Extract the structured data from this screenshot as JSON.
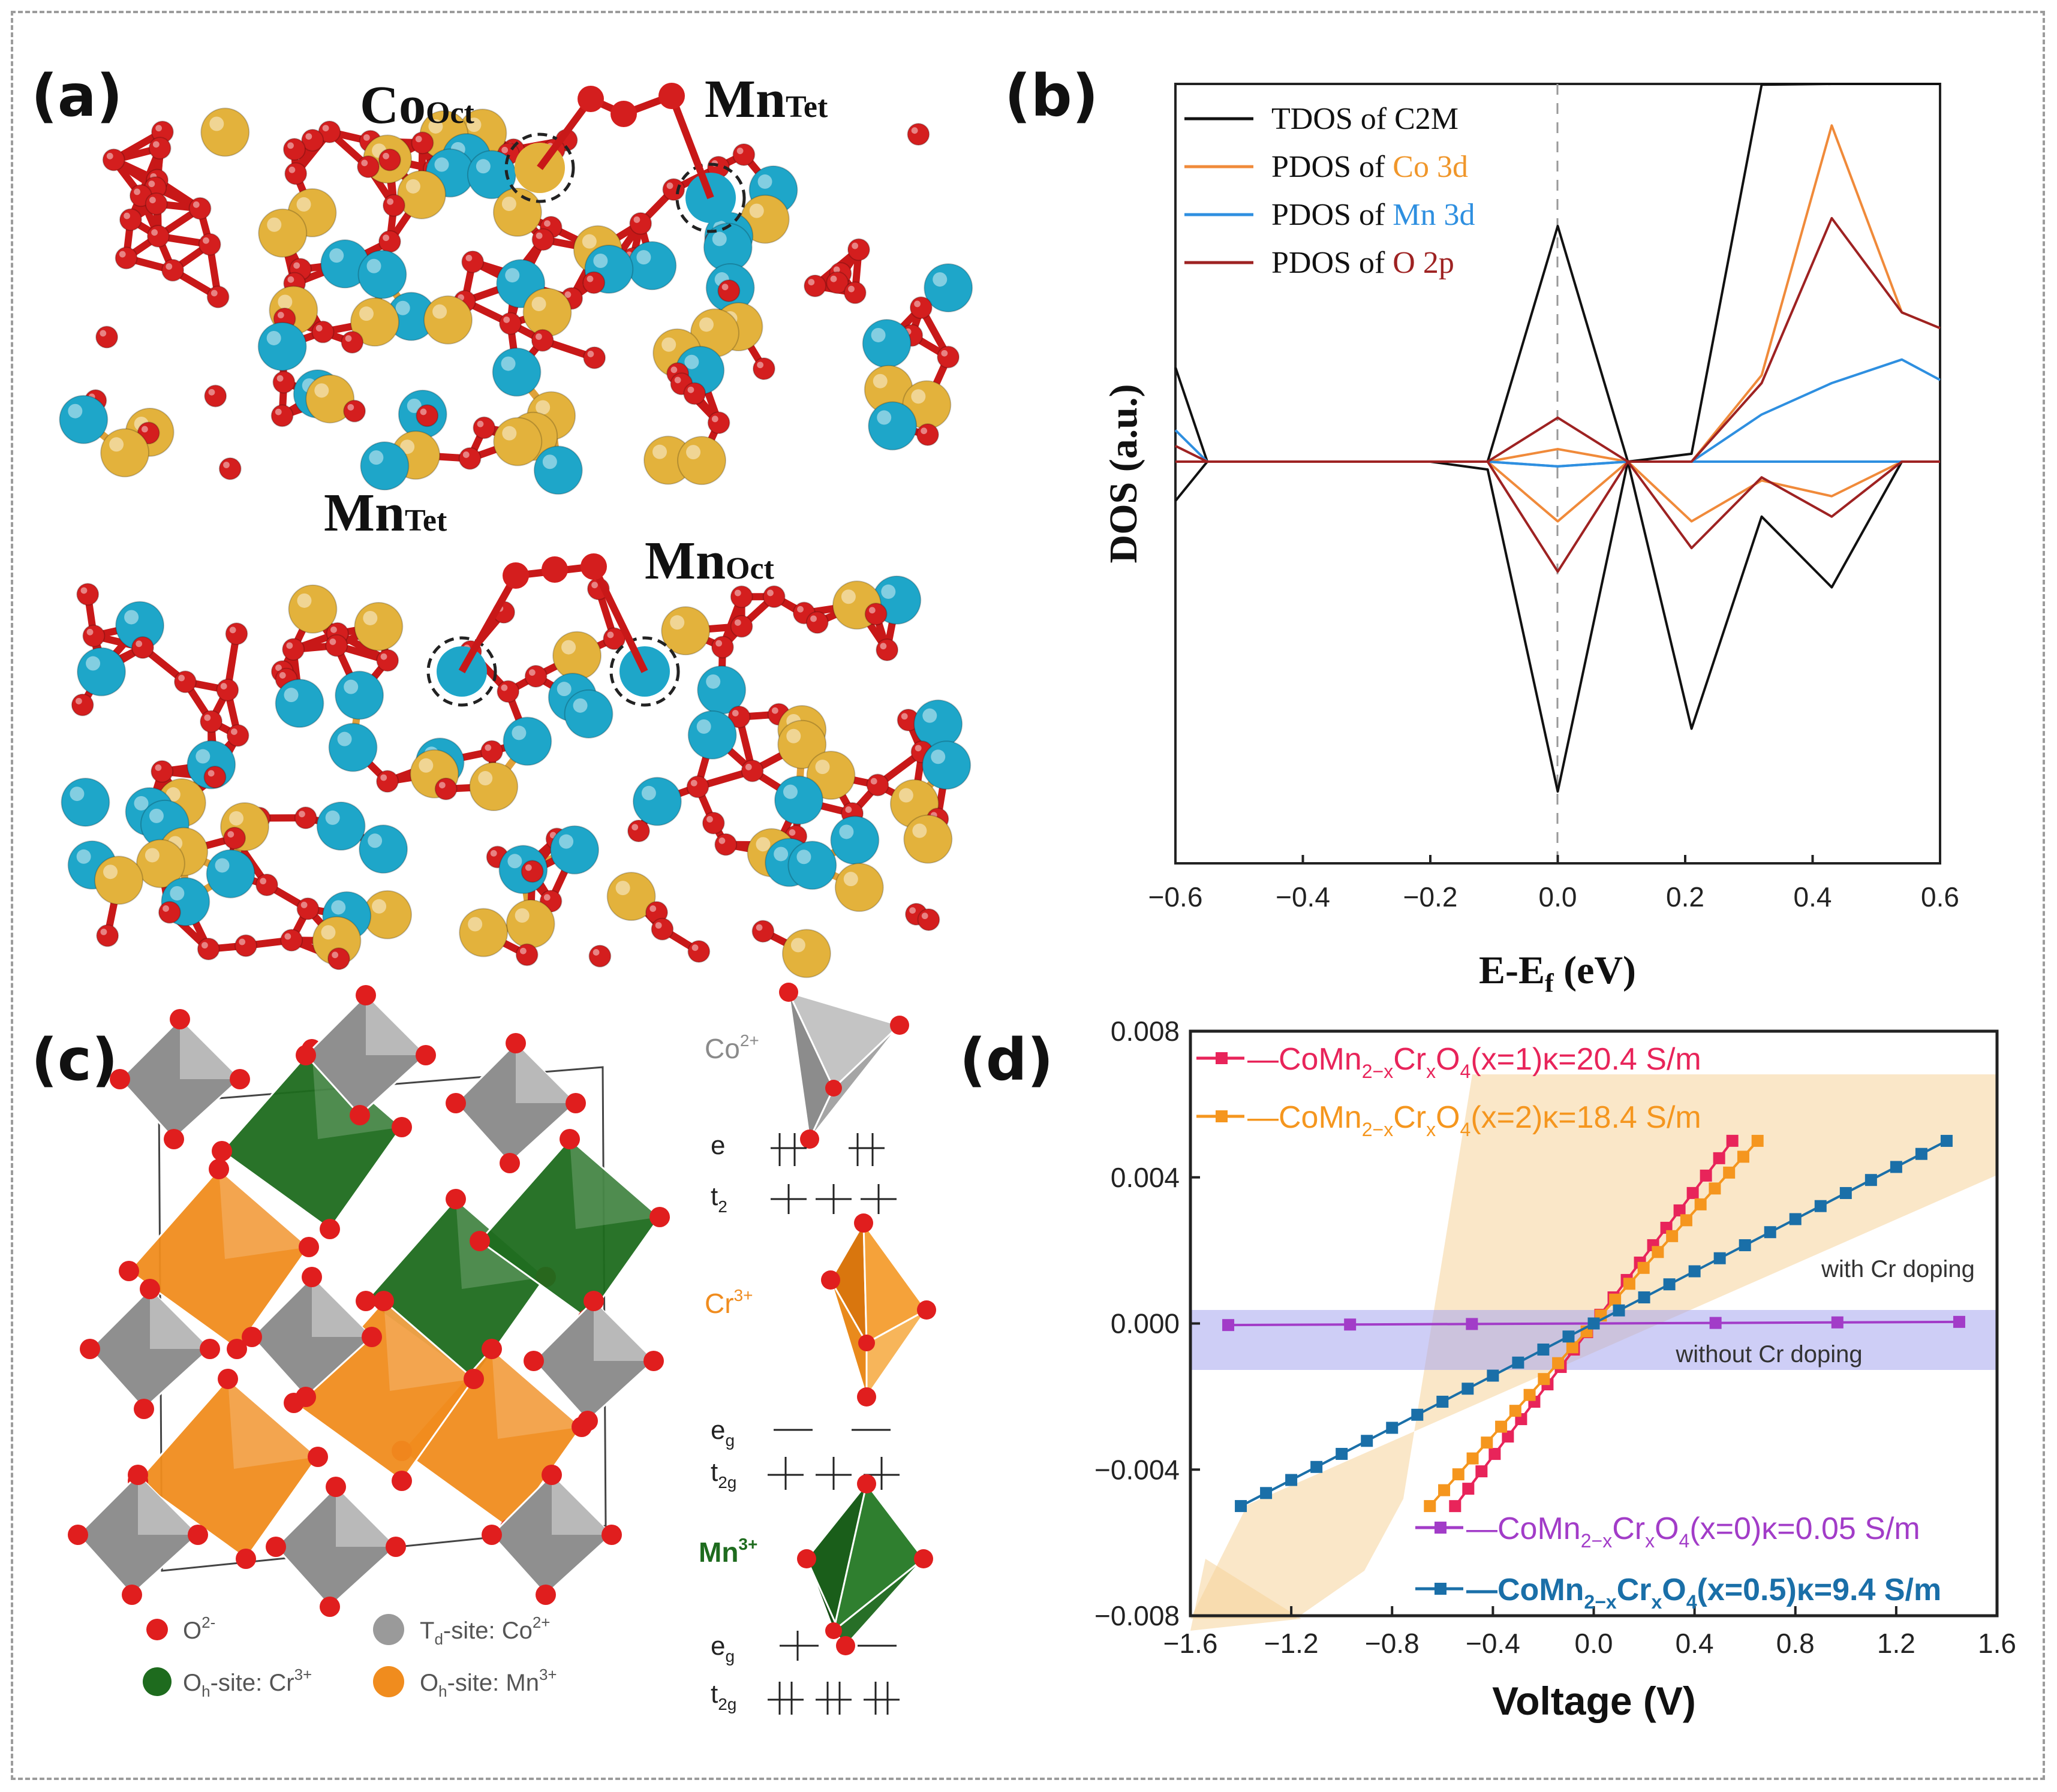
{
  "panels": {
    "a": {
      "label": "(a)",
      "top_sites": [
        {
          "main": "Co",
          "sub": "Oct"
        },
        {
          "main": "Mn",
          "sub": "Tet"
        }
      ],
      "bottom_sites": [
        {
          "main": "Mn",
          "sub": "Tet"
        },
        {
          "main": "Mn",
          "sub": "Oct"
        }
      ],
      "atom_colors": {
        "cobalt": "#e3b23c",
        "manganese": "#1ea6c9",
        "oxygen": "#d41e1e"
      }
    },
    "b": {
      "label": "(b)",
      "legend": [
        {
          "prefix": "TDOS of ",
          "species": "C2M",
          "color": "#111111",
          "species_color": "#111111"
        },
        {
          "prefix": "PDOS of ",
          "species": "Co 3d",
          "color": "#f08a3a",
          "species_color": "#f0962a"
        },
        {
          "prefix": "PDOS of ",
          "species": "Mn 3d",
          "color": "#2e8fe0",
          "species_color": "#2e8fe0"
        },
        {
          "prefix": "PDOS of ",
          "species": "O 2p",
          "color": "#9e2222",
          "species_color": "#9e2222"
        }
      ]
    },
    "c": {
      "label": "(c)",
      "ions": [
        {
          "name": "Co",
          "charge": "2+",
          "color": "#8a8a8a"
        },
        {
          "name": "Cr",
          "charge": "3+",
          "color": "#f08c1e"
        },
        {
          "name": "Mn",
          "charge": "3+",
          "color": "#1e6b1e"
        }
      ],
      "levels": {
        "co_upper": "e",
        "co_lower": "t",
        "co_lower_sub": "2",
        "cr_upper": "e",
        "cr_upper_sub": "g",
        "cr_lower": "t",
        "cr_lower_sub": "2g",
        "mn_upper": "e",
        "mn_upper_sub": "g",
        "mn_lower": "t",
        "mn_lower_sub": "2g"
      },
      "legend": [
        {
          "text": "O",
          "sup": "2-",
          "color": "#e01e1e"
        },
        {
          "text": "T",
          "sub": "d",
          "rest": "-site: Co",
          "sup": "2+",
          "color": "#9a9a9a"
        },
        {
          "text": "O",
          "sub": "h",
          "rest": "-site: Cr",
          "sup": "3+",
          "color": "#1e6b1e"
        },
        {
          "text": "O",
          "sub": "h",
          "rest": "-site: Mn",
          "sup": "3+",
          "color": "#f08c1e"
        }
      ]
    },
    "d": {
      "label": "(d)"
    }
  },
  "chart_data": [
    {
      "type": "line",
      "panel": "b",
      "xlabel": "E-E",
      "xlabel_sub": "f",
      "xlabel_unit": " (eV)",
      "ylabel": "DOS (a.u.)",
      "xlim": [
        -0.6,
        0.6
      ],
      "ylim": [
        -1.25,
        1.25
      ],
      "xticks": [
        -0.6,
        -0.4,
        -0.2,
        0.0,
        0.2,
        0.4,
        0.6
      ],
      "xtick_labels": [
        "−0.6",
        "−0.4",
        "−0.2",
        "0.0",
        "0.2",
        "0.4",
        "0.6"
      ],
      "x": [
        -0.6,
        -0.55,
        -0.2,
        -0.11,
        0.0,
        0.11,
        0.21,
        0.32,
        0.43,
        0.54,
        0.6
      ],
      "series": [
        {
          "name": "TDOS of C2M",
          "color": "#111111",
          "up": [
            0.6,
            0,
            0,
            0,
            1.5,
            0,
            0.05,
            2.4,
            3.5,
            3.5,
            3.5
          ],
          "down": [
            -0.25,
            0,
            0,
            -0.05,
            -2.1,
            0,
            -1.7,
            -0.35,
            -0.8,
            0,
            0
          ]
        },
        {
          "name": "PDOS of Co 3d",
          "color": "#f08a3a",
          "up": [
            0,
            0,
            0,
            0,
            0.08,
            0,
            0,
            0.55,
            2.14,
            0.95,
            0.85
          ],
          "down": [
            0,
            0,
            0,
            0,
            -0.38,
            0,
            -0.38,
            -0.12,
            -0.22,
            0,
            0
          ]
        },
        {
          "name": "PDOS of Mn 3d",
          "color": "#2e8fe0",
          "up": [
            0.2,
            0,
            0,
            0,
            -0.03,
            0,
            0,
            0.3,
            0.5,
            0.65,
            0.52
          ],
          "down": [
            0,
            0,
            0,
            0,
            -0.03,
            0,
            0,
            0,
            0,
            0,
            0
          ]
        },
        {
          "name": "PDOS of O 2p",
          "color": "#9e2222",
          "up": [
            0.1,
            0,
            0,
            0,
            0.28,
            0,
            0,
            0.5,
            1.55,
            0.95,
            0.85
          ],
          "down": [
            0,
            0,
            0,
            0,
            -0.7,
            0,
            -0.55,
            -0.1,
            -0.35,
            0,
            0
          ]
        }
      ]
    },
    {
      "type": "line",
      "panel": "d",
      "xlabel": "Voltage (V)",
      "ylabel": "",
      "xlim": [
        -1.6,
        1.6
      ],
      "ylim": [
        -0.008,
        0.008
      ],
      "xticks": [
        -1.6,
        -1.2,
        -0.8,
        -0.4,
        0.0,
        0.4,
        0.8,
        1.2,
        1.6
      ],
      "xtick_labels": [
        "−1.6",
        "−1.2",
        "−0.8",
        "−0.4",
        "0.0",
        "0.4",
        "0.8",
        "1.2",
        "1.6"
      ],
      "yticks": [
        0.008,
        0.004,
        0.0,
        -0.004,
        -0.008
      ],
      "ytick_labels": [
        "0.008",
        "0.004",
        "0.000",
        "−0.004",
        "−0.008"
      ],
      "annotations": [
        "with Cr doping",
        "without Cr doping"
      ],
      "series": [
        {
          "name": "CoMn2-xCrxO4(x=1)κ=20.4 S/m",
          "x_value": "1",
          "kappa": "20.4",
          "color": "#e8245a",
          "x_range": [
            -0.55,
            0.55
          ],
          "slope": 0.00909,
          "n": 22
        },
        {
          "name": "CoMn2-xCrxO4(x=2)κ=18.4 S/m",
          "x_value": "2",
          "kappa": "18.4",
          "color": "#f5961e",
          "x_range": [
            -0.65,
            0.65
          ],
          "slope": 0.00769,
          "n": 24
        },
        {
          "name": "CoMn2-xCrxO4(x=0)κ=0.05 S/m",
          "x_value": "0",
          "kappa": "0.05",
          "color": "#a23cc8",
          "x_range": [
            -1.45,
            1.45
          ],
          "slope": 3e-05,
          "n": 7
        },
        {
          "name": "CoMn2-xCrxO4(x=0.5)κ=9.4 S/m",
          "x_value": "0.5",
          "kappa": "9.4",
          "color": "#1a6fa8",
          "x_range": [
            -1.4,
            1.4
          ],
          "slope": 0.00357,
          "n": 29
        }
      ]
    }
  ]
}
